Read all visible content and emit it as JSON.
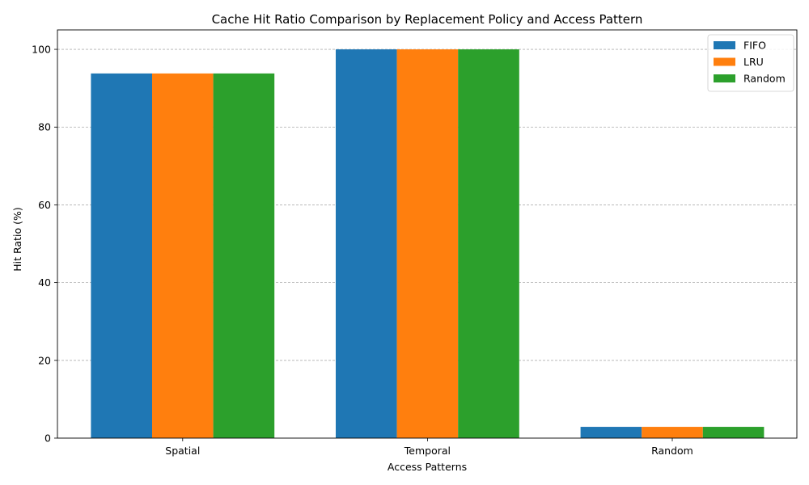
{
  "chart_data": {
    "type": "bar",
    "title": "Cache Hit Ratio Comparison by Replacement Policy and Access Pattern",
    "xlabel": "Access Patterns",
    "ylabel": "Hit Ratio (%)",
    "categories": [
      "Spatial",
      "Temporal",
      "Random"
    ],
    "series": [
      {
        "name": "FIFO",
        "values": [
          93.8,
          100,
          2.9
        ],
        "color": "#1f77b4"
      },
      {
        "name": "LRU",
        "values": [
          93.8,
          100,
          2.9
        ],
        "color": "#ff7f0e"
      },
      {
        "name": "Random",
        "values": [
          93.8,
          100,
          2.9
        ],
        "color": "#2ca02c"
      }
    ],
    "ylim": [
      0,
      105
    ],
    "yticks": [
      0,
      20,
      40,
      60,
      80,
      100
    ],
    "grid": "y-dashed",
    "legend_position": "top-right"
  }
}
